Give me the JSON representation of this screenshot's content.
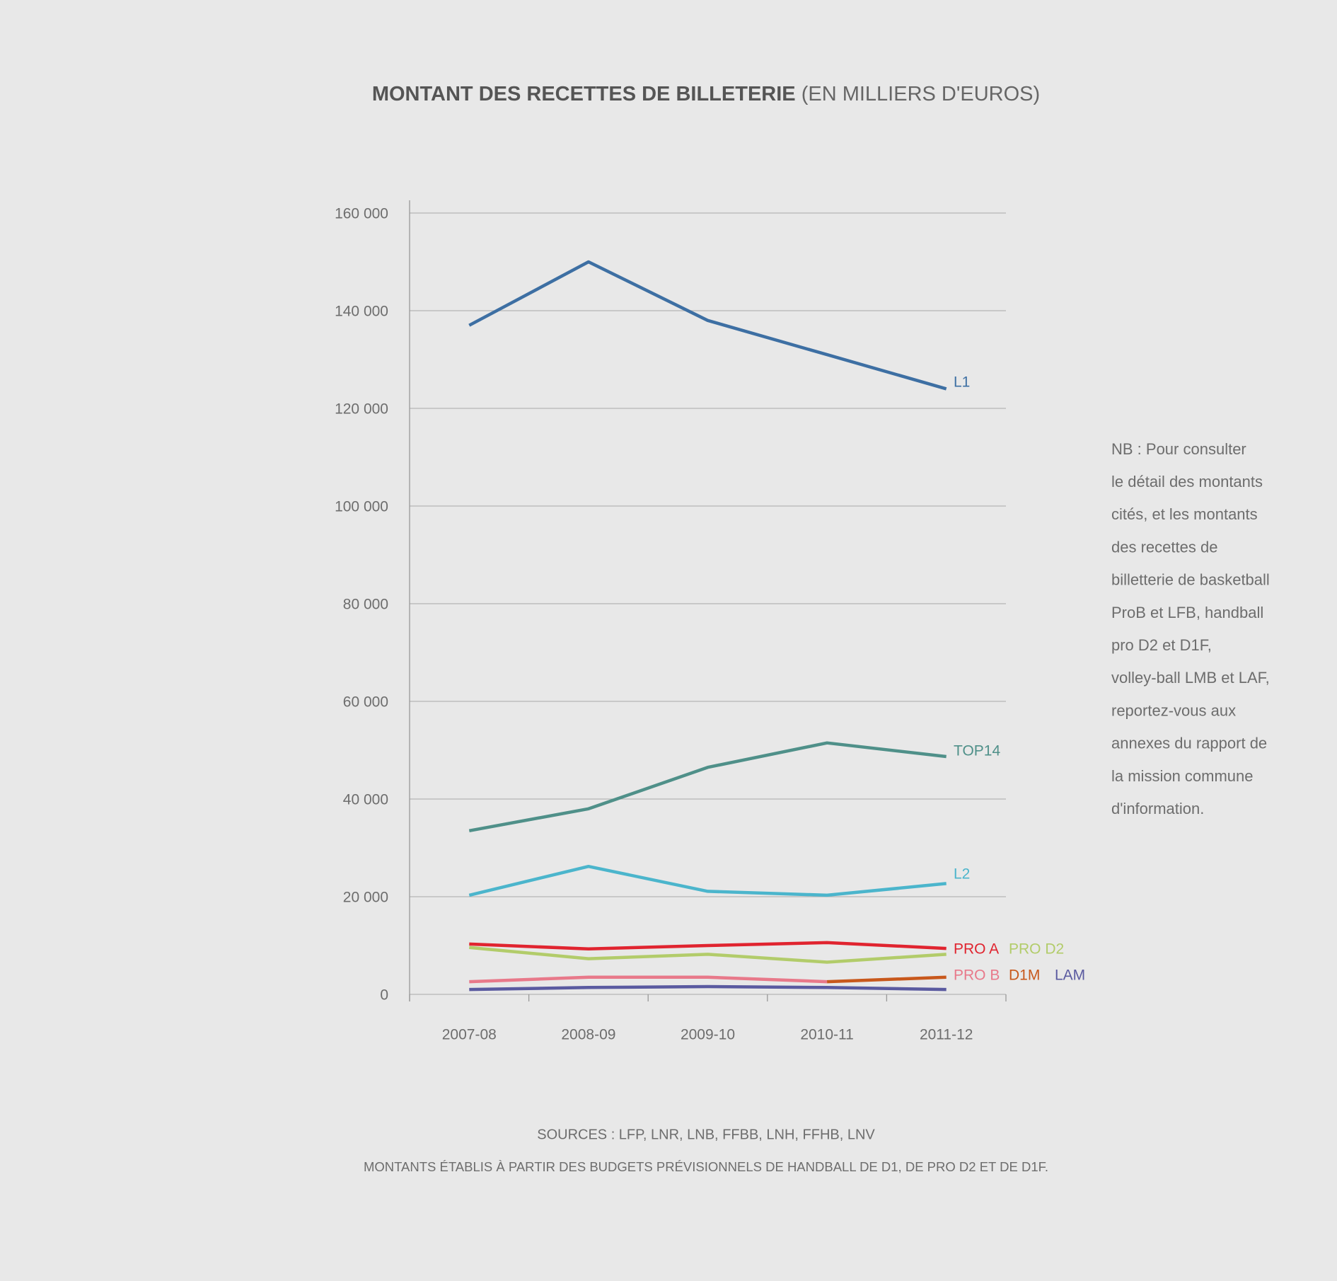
{
  "chart_data": {
    "type": "line",
    "title": "MONTANT DES RECETTES DE BILLETERIE",
    "subtitle": "(EN MILLIERS D'EUROS)",
    "categories": [
      "2007-08",
      "2008-09",
      "2009-10",
      "2010-11",
      "2011-12"
    ],
    "series": [
      {
        "name": "L1",
        "color": "#3d6fa3",
        "values": [
          137000,
          150000,
          138000,
          131000,
          124000
        ]
      },
      {
        "name": "TOP14",
        "color": "#4f9089",
        "values": [
          33500,
          38000,
          46500,
          51500,
          48700
        ]
      },
      {
        "name": "L2",
        "color": "#4bb5cc",
        "values": [
          20300,
          26200,
          21100,
          20300,
          22700
        ]
      },
      {
        "name": "PRO A",
        "color": "#e0242f",
        "values": [
          10300,
          9300,
          10000,
          10600,
          9400
        ]
      },
      {
        "name": "PRO D2",
        "color": "#b2cc6a",
        "values": [
          9600,
          7300,
          8200,
          6600,
          8200
        ]
      },
      {
        "name": "PRO B",
        "color": "#e8798a",
        "values": [
          2600,
          3500,
          3500,
          2600,
          null
        ]
      },
      {
        "name": "D1M",
        "color": "#c8581c",
        "values": [
          null,
          null,
          null,
          2600,
          3500
        ]
      },
      {
        "name": "LAM",
        "color": "#5a5aa0",
        "values": [
          1000,
          1400,
          1600,
          1400,
          1000
        ]
      }
    ],
    "ylim": [
      0,
      160000
    ],
    "yticks": [
      0,
      {
        "value": 20000,
        "label": "20 000"
      },
      {
        "value": 40000,
        "label": "40 000"
      },
      {
        "value": 60000,
        "label": "60 000"
      },
      {
        "value": 80000,
        "label": "80 000"
      },
      {
        "value": 100000,
        "label": "100 000"
      },
      {
        "value": 120000,
        "label": "120 000"
      },
      {
        "value": 140000,
        "label": "140 000"
      },
      {
        "value": 160000,
        "label": "160 000"
      }
    ],
    "grid": true,
    "note": [
      "NB : Pour consulter",
      "le détail des montants",
      "cités, et les montants",
      "des recettes de",
      "billetterie de basketball",
      "ProB et LFB, handball",
      "pro D2 et D1F,",
      "volley-ball LMB et LAF,",
      "reportez-vous aux",
      "annexes du rapport de",
      "la mission commune",
      "d'information."
    ],
    "sources": "SOURCES : LFP, LNR, LNB, FFBB, LNH, FFHB, LNV",
    "footnote": "MONTANTS ÉTABLIS À PARTIR DES BUDGETS PRÉVISIONNELS DE HANDBALL DE D1, DE PRO D2 ET DE D1F."
  }
}
